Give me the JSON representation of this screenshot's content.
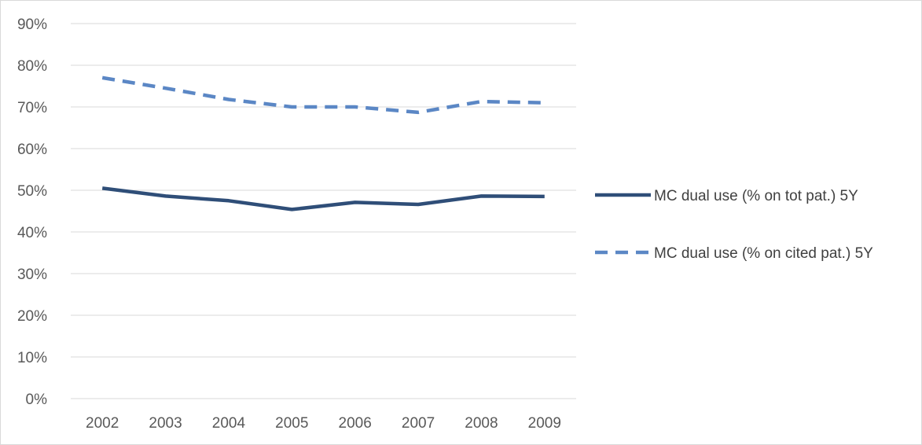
{
  "chart_data": {
    "type": "line",
    "title": "",
    "xlabel": "",
    "ylabel": "",
    "categories": [
      "2002",
      "2003",
      "2004",
      "2005",
      "2006",
      "2007",
      "2008",
      "2009"
    ],
    "ylim": [
      0,
      90
    ],
    "yticks": [
      "0%",
      "10%",
      "20%",
      "30%",
      "40%",
      "50%",
      "60%",
      "70%",
      "80%",
      "90%"
    ],
    "grid": true,
    "legend_position": "right",
    "series": [
      {
        "name": "MC dual use (% on tot pat.) 5Y",
        "values": [
          50.5,
          48.6,
          47.5,
          45.4,
          47.1,
          46.6,
          48.6,
          48.5
        ],
        "color": "#2f4e78",
        "style": "solid"
      },
      {
        "name": "MC dual use (% on cited pat.) 5Y",
        "values": [
          77.0,
          74.5,
          71.8,
          70.0,
          70.0,
          68.7,
          71.3,
          71.0
        ],
        "color": "#5b87c5",
        "style": "dashed"
      }
    ]
  }
}
